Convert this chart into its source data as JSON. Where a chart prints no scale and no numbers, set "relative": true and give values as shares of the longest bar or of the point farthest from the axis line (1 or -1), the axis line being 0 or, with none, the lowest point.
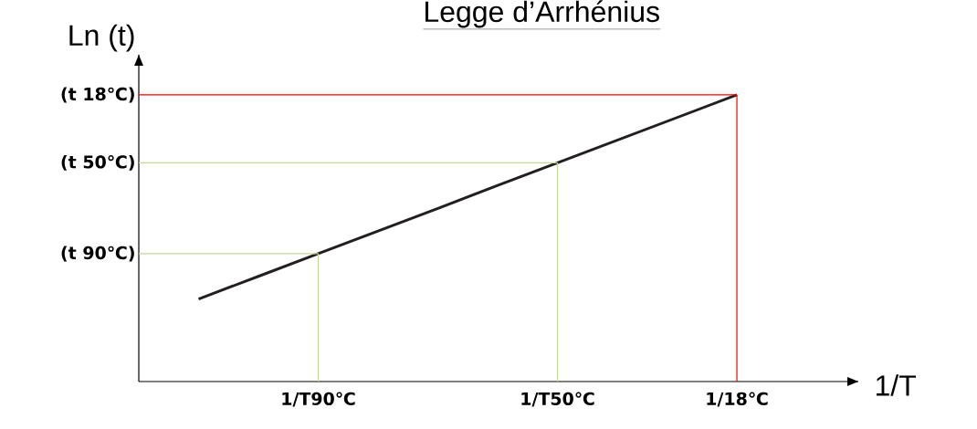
{
  "chart_data": {
    "type": "line",
    "title": "Legge d’Arrhénius",
    "xlabel": "1/T",
    "ylabel": "Ln (t)",
    "relative": true,
    "marker": "none",
    "categories": [
      null,
      null,
      null,
      "1/T90℃",
      null,
      null,
      null,
      "1/T50℃",
      null,
      null,
      "1/18℃"
    ],
    "series": [
      {
        "color": "#231f20",
        "values": [
          null,
          0.288,
          0.367,
          0.446,
          0.525,
          0.604,
          0.684,
          0.763,
          0.842,
          0.921,
          1
        ]
      },
      {
        "color": "#c3d69b",
        "values": [
          0.446,
          0.446,
          0.446,
          0.446,
          null,
          null,
          null,
          null,
          null,
          null,
          null
        ]
      },
      {
        "color": "#c3d69b",
        "values": [
          0.763,
          0.763,
          0.763,
          0.763,
          0.763,
          0.763,
          0.763,
          0.763,
          null,
          null,
          null
        ]
      },
      {
        "color": "#ff0000",
        "values": [
          1,
          1,
          1,
          1,
          1,
          1,
          1,
          1,
          1,
          1,
          1
        ]
      },
      {
        "type": "bar",
        "colors": [
          null,
          null,
          null,
          "#c3d69b",
          null,
          null,
          null,
          "#c3d69b",
          null,
          null,
          "#ff0000"
        ],
        "values": [
          null,
          null,
          null,
          0.446,
          null,
          null,
          null,
          0.763,
          null,
          null,
          1
        ]
      }
    ],
    "annotations": [
      "(t 90℃)",
      "(t 50℃)",
      "(t 18℃)"
    ]
  }
}
